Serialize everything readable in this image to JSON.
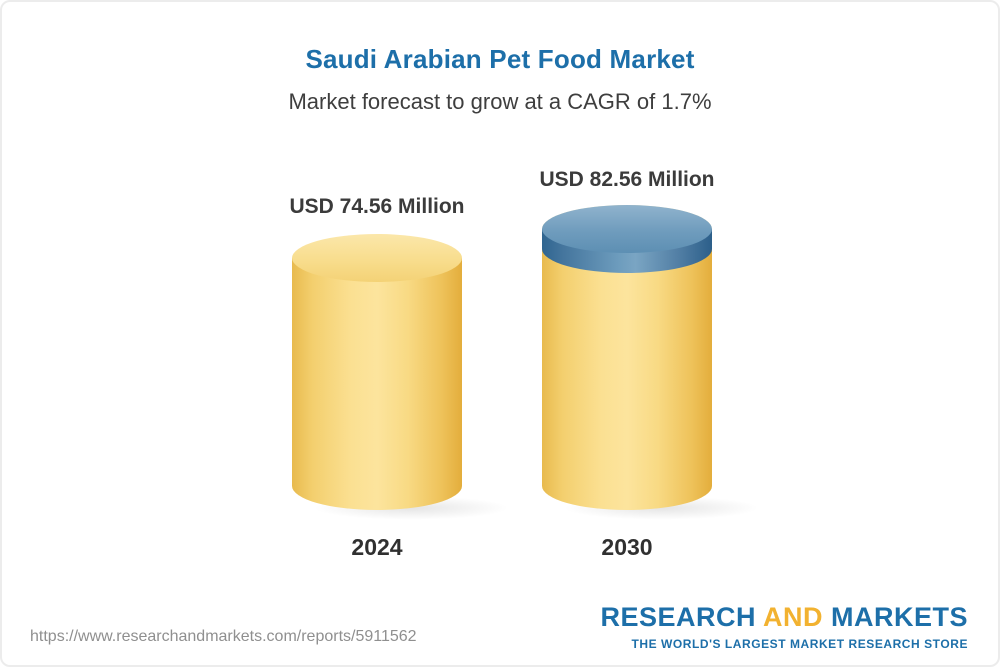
{
  "card": {
    "title": "Saudi Arabian Pet Food Market",
    "subtitle": "Market forecast to grow at a CAGR of 1.7%"
  },
  "chart_data": {
    "type": "bar",
    "title": "Saudi Arabian Pet Food Market",
    "subtitle": "Market forecast to grow at a CAGR of 1.7%",
    "unit": "USD Million",
    "categories": [
      "2024",
      "2030"
    ],
    "values": [
      74.56,
      82.56
    ],
    "value_labels": [
      "USD 74.56 Million",
      "USD 82.56 Million"
    ],
    "cagr_pct": 1.7,
    "bar_style": "3d-cylinder",
    "legend": "none",
    "grid": false,
    "colors": {
      "bar_body": "#F5D26F",
      "growth_cap": "#4E82A8",
      "title": "#1D6FA9",
      "labels": "#3B3B3B"
    }
  },
  "footer": {
    "source_url": "https://www.researchandmarkets.com/reports/5911562",
    "logo": {
      "word_research": "RESEARCH",
      "word_and": "AND",
      "word_markets": "MARKETS",
      "tagline": "THE WORLD'S LARGEST MARKET RESEARCH STORE"
    }
  }
}
